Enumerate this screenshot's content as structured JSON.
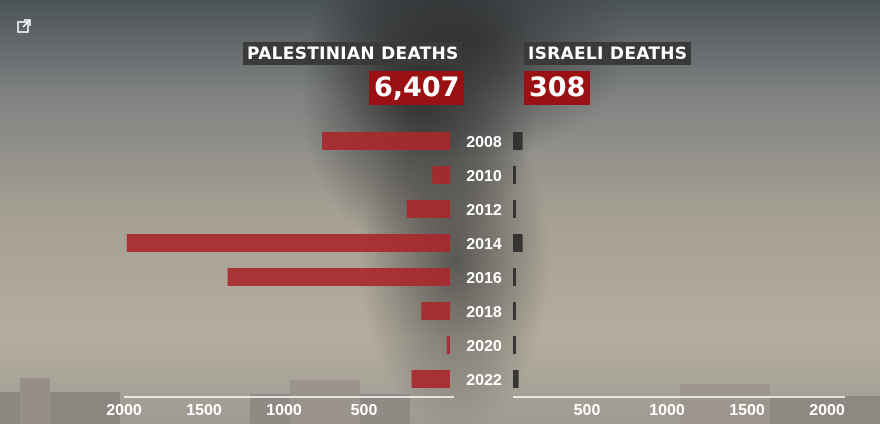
{
  "headers": {
    "left_title": "PALESTINIAN DEATHS",
    "left_total": "6,407",
    "right_title": "ISRAELI DEATHS",
    "right_total": "308"
  },
  "icons": {
    "export": "external-link-icon"
  },
  "colors": {
    "palestinian_bar": "#a8282c",
    "israeli_bar": "#2b2b2b",
    "total_box": "#9a1114",
    "label_box": "#3a3a3a"
  },
  "chart_data": {
    "type": "bar",
    "orientation": "horizontal-butterfly",
    "categories": [
      "2008",
      "2010",
      "2012",
      "2014",
      "2016",
      "2018",
      "2020",
      "2022"
    ],
    "series": [
      {
        "name": "PALESTINIAN DEATHS",
        "side": "left",
        "values": [
          800,
          110,
          270,
          2020,
          1390,
          180,
          20,
          240
        ]
      },
      {
        "name": "ISRAELI DEATHS",
        "side": "right",
        "values": [
          60,
          10,
          10,
          60,
          10,
          10,
          5,
          35
        ]
      }
    ],
    "left_axis": {
      "ticks": [
        2000,
        1500,
        1000,
        500
      ],
      "range": [
        0,
        2400
      ]
    },
    "right_axis": {
      "ticks": [
        500,
        1000,
        1500,
        2000
      ],
      "range": [
        0,
        2000
      ]
    },
    "grid": false
  }
}
